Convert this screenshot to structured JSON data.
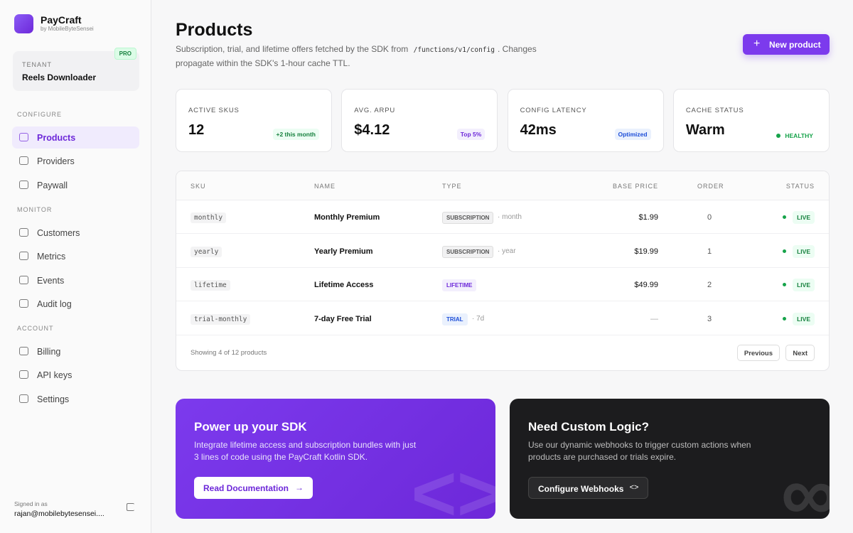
{
  "sidebar": {
    "brand": "PayCraft",
    "brand_sub": "by MobileByteSensei",
    "tenant_label": "TENANT",
    "tenant_name": "Reels Downloader",
    "badge": "PRO",
    "sections": [
      {
        "title": "CONFIGURE",
        "items": [
          "Products",
          "Providers",
          "Paywall"
        ]
      },
      {
        "title": "MONITOR",
        "items": [
          "Customers",
          "Metrics",
          "Events",
          "Audit log"
        ]
      },
      {
        "title": "ACCOUNT",
        "items": [
          "Billing",
          "API keys",
          "Settings"
        ]
      }
    ],
    "signed_in_label": "Signed in as",
    "user": "rajan@mobilebytesensei...."
  },
  "header": {
    "title": "Products",
    "desc_before": "Subscription, trial, and lifetime offers fetched by the SDK from",
    "desc_code": "/functions/v1/config",
    "desc_after": ". Changes propagate within the SDK's 1-hour cache TTL.",
    "button": "New product"
  },
  "stats": [
    {
      "label": "ACTIVE SKUS",
      "value": "12",
      "badge": "+2 this month"
    },
    {
      "label": "AVG. ARPU",
      "value": "$4.12",
      "badge": "Top 5%"
    },
    {
      "label": "CONFIG LATENCY",
      "value": "42ms",
      "badge": "Optimized"
    },
    {
      "label": "CACHE STATUS",
      "value": "Warm",
      "badge": "HEALTHY"
    }
  ],
  "table": {
    "columns": [
      "SKU",
      "NAME",
      "TYPE",
      "BASE PRICE",
      "ORDER",
      "STATUS"
    ],
    "rows": [
      {
        "sku": "monthly",
        "name": "Monthly Premium",
        "type": "SUBSCRIPTION",
        "detail": "· month",
        "price": "$1.99",
        "order": "0",
        "status": "LIVE"
      },
      {
        "sku": "yearly",
        "name": "Yearly Premium",
        "type": "SUBSCRIPTION",
        "detail": "· year",
        "price": "$19.99",
        "order": "1",
        "status": "LIVE"
      },
      {
        "sku": "lifetime",
        "name": "Lifetime Access",
        "type": "LIFETIME",
        "price": "$49.99",
        "order": "2",
        "status": "LIVE"
      },
      {
        "sku": "trial-monthly",
        "name": "7-day Free Trial",
        "type": "TRIAL",
        "detail": "· 7d",
        "price": "—",
        "order": "3",
        "status": "LIVE"
      }
    ],
    "footer": "Showing 4 of 12 products",
    "prev": "Previous",
    "next": "Next"
  },
  "cards": [
    {
      "title": "Power up your SDK",
      "text": "Integrate lifetime access and subscription bundles with just 3 lines of code using the PayCraft Kotlin SDK.",
      "button": "Read Documentation"
    },
    {
      "title": "Need Custom Logic?",
      "text": "Use our dynamic webhooks to trigger custom actions when products are purchased or trials expire.",
      "button": "Configure Webhooks"
    }
  ]
}
